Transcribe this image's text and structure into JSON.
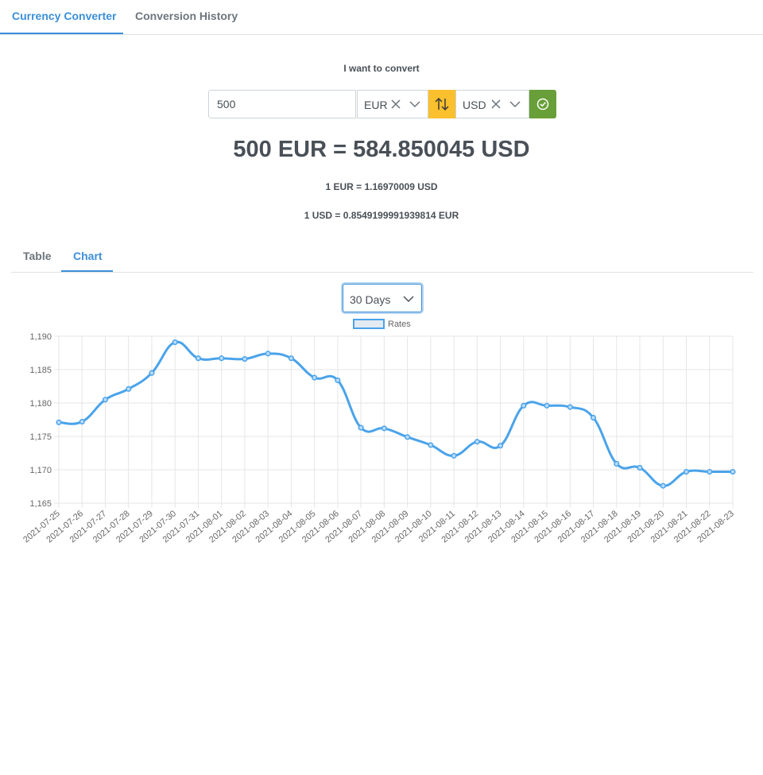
{
  "top_tabs": {
    "converter": "Currency Converter",
    "history": "Conversion History"
  },
  "form": {
    "title": "I want to convert",
    "amount": "500",
    "from_currency": "EUR",
    "to_currency": "USD"
  },
  "result": {
    "main": "500 EUR = 584.850045 USD",
    "rate_from": "1 EUR = 1.16970009 USD",
    "rate_to": "1 USD = 0.8549199991939814 EUR"
  },
  "view_tabs": {
    "table": "Table",
    "chart": "Chart"
  },
  "period": {
    "selected": "30 Days"
  },
  "colors": {
    "accent": "#3b8fd9",
    "swap": "#fbc02d",
    "confirm": "#689f38",
    "line": "#4aa3ea"
  },
  "chart_data": {
    "type": "line",
    "ylim": [
      1.165,
      1.19
    ],
    "y_ticks": [
      "1,165",
      "1,170",
      "1,175",
      "1,180",
      "1,185",
      "1,190"
    ],
    "grid": true,
    "legend": "top",
    "x": [
      "2021-07-25",
      "2021-07-26",
      "2021-07-27",
      "2021-07-28",
      "2021-07-29",
      "2021-07-30",
      "2021-07-31",
      "2021-08-01",
      "2021-08-02",
      "2021-08-03",
      "2021-08-04",
      "2021-08-05",
      "2021-08-06",
      "2021-08-07",
      "2021-08-08",
      "2021-08-09",
      "2021-08-10",
      "2021-08-11",
      "2021-08-12",
      "2021-08-13",
      "2021-08-14",
      "2021-08-15",
      "2021-08-16",
      "2021-08-17",
      "2021-08-18",
      "2021-08-19",
      "2021-08-20",
      "2021-08-21",
      "2021-08-22",
      "2021-08-23"
    ],
    "series": [
      {
        "name": "Rates",
        "values": [
          1.1771,
          1.1772,
          1.1805,
          1.1821,
          1.1845,
          1.1891,
          1.1867,
          1.1867,
          1.1866,
          1.1874,
          1.1867,
          1.1838,
          1.1834,
          1.1763,
          1.1762,
          1.1749,
          1.1737,
          1.1721,
          1.1742,
          1.1736,
          1.1796,
          1.1796,
          1.1794,
          1.1778,
          1.1709,
          1.1703,
          1.1676,
          1.1697,
          1.1697,
          1.1697
        ]
      }
    ]
  }
}
